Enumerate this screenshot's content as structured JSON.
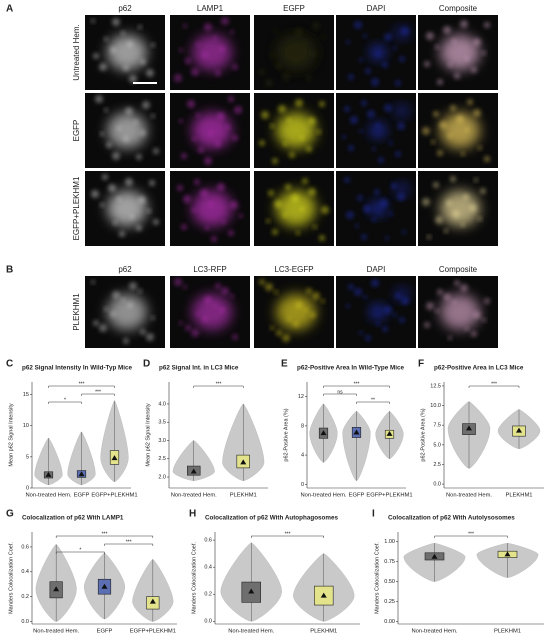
{
  "panel_a": {
    "label": "A",
    "columns": [
      "p62",
      "LAMP1",
      "EGFP",
      "DAPI",
      "Composite"
    ],
    "rows": [
      "Untreated Hem.",
      "EGFP",
      "EGFP+PLEKHM1"
    ]
  },
  "panel_b": {
    "label": "B",
    "columns": [
      "p62",
      "LC3-RFP",
      "LC3-EGFP",
      "DAPI",
      "Composite"
    ],
    "rows": [
      "PLEKHM1"
    ]
  },
  "chart_data": [
    {
      "type": "violin",
      "label": "C",
      "title": "p62 Signal Intensity In Wild-Typ Mice",
      "y_label": "Mean p62 Signal Intensity",
      "categories": [
        "Non-treated Hem.",
        "EGFP",
        "EGFP+PLEKHM1"
      ],
      "colors": [
        "#6e6e6e",
        "#5b6fb2",
        "#e3e38c"
      ],
      "values": [
        2.1,
        2.2,
        4.8
      ],
      "q1": [
        1.6,
        1.7,
        3.8
      ],
      "q3": [
        2.6,
        2.8,
        6
      ],
      "min": [
        0.5,
        0.5,
        1
      ],
      "max": [
        8,
        9,
        14
      ],
      "ylim": [
        0,
        17
      ],
      "yticks": [
        0,
        5,
        10,
        15
      ],
      "significance": [
        {
          "pair": [
            0,
            2
          ],
          "label": "***"
        },
        {
          "pair": [
            1,
            2
          ],
          "label": "***"
        },
        {
          "pair": [
            0,
            1
          ],
          "label": "*"
        }
      ]
    },
    {
      "type": "violin",
      "label": "D",
      "title": "p62 Signal Int. in LC3 Mice",
      "y_label": "Mean p62 Signal Intensity",
      "categories": [
        "Non-treated Hem.",
        "PLEKHM1"
      ],
      "colors": [
        "#6e6e6e",
        "#e3e38c"
      ],
      "values": [
        2.15,
        2.4
      ],
      "q1": [
        2.05,
        2.25
      ],
      "q3": [
        2.3,
        2.6
      ],
      "min": [
        1.9,
        1.9
      ],
      "max": [
        3.0,
        4.0
      ],
      "ylim": [
        1.7,
        4.6
      ],
      "yticks": [
        {
          "value": 2,
          "label": "2.0"
        },
        2.5,
        {
          "value": 3,
          "label": "3.0"
        },
        3.5,
        {
          "value": 4,
          "label": "4.0"
        }
      ],
      "significance": [
        {
          "pair": [
            0,
            1
          ],
          "label": "***"
        }
      ]
    },
    {
      "type": "violin",
      "label": "E",
      "title": "p62-Positive Area In Wild-Type Mice",
      "y_label": "p62-Positive Area (%)",
      "categories": [
        "Non-treated Hem.",
        "EGFP",
        "EGFP+PLEKHM1"
      ],
      "colors": [
        "#6e6e6e",
        "#5b6fb2",
        "#e3e38c"
      ],
      "values": [
        7,
        7.1,
        6.9
      ],
      "q1": [
        6.3,
        6.4,
        6.3
      ],
      "q3": [
        7.7,
        7.8,
        7.4
      ],
      "min": [
        3,
        0.5,
        3.5
      ],
      "max": [
        11,
        10,
        10
      ],
      "ylim": [
        -0.5,
        14
      ],
      "yticks": [
        0,
        4,
        8,
        12
      ],
      "significance": [
        {
          "pair": [
            0,
            2
          ],
          "label": "***"
        },
        {
          "pair": [
            0,
            1
          ],
          "label": "ns"
        },
        {
          "pair": [
            1,
            2
          ],
          "label": "**"
        }
      ]
    },
    {
      "type": "violin",
      "label": "F",
      "title": "p62-Positive Area in LC3 Mice",
      "y_label": "p62-Positive Area (%)",
      "categories": [
        "Non-treated Hem.",
        "PLEKHM1"
      ],
      "colors": [
        "#6e6e6e",
        "#e3e38c"
      ],
      "values": [
        7.1,
        6.8
      ],
      "q1": [
        6.3,
        6.1
      ],
      "q3": [
        7.7,
        7.4
      ],
      "min": [
        2,
        4.5
      ],
      "max": [
        10.5,
        9.5
      ],
      "ylim": [
        -0.5,
        13
      ],
      "yticks": [
        {
          "value": 0,
          "label": "0.0"
        },
        2.5,
        {
          "value": 5,
          "label": "5.0"
        },
        7.5,
        {
          "value": 10,
          "label": "10.0"
        },
        12.5
      ],
      "significance": [
        {
          "pair": [
            0,
            1
          ],
          "label": "***"
        }
      ]
    },
    {
      "type": "violin",
      "label": "G",
      "title": "Colocalization of p62 With LAMP1",
      "y_label": "Manders Colocalization Coef.",
      "categories": [
        "Non-treated Hem.",
        "EGFP",
        "EGFP+PLEKHM1"
      ],
      "colors": [
        "#6e6e6e",
        "#5b6fb2",
        "#e3e38c"
      ],
      "values": [
        0.26,
        0.28,
        0.16
      ],
      "q1": [
        0.19,
        0.22,
        0.1
      ],
      "q3": [
        0.32,
        0.34,
        0.2
      ],
      "min": [
        0,
        0.02,
        0
      ],
      "max": [
        0.62,
        0.55,
        0.5
      ],
      "ylim": [
        -0.02,
        0.72
      ],
      "yticks": [
        {
          "value": 0,
          "label": "0.0"
        },
        0.2,
        0.4,
        0.6
      ],
      "significance": [
        {
          "pair": [
            0,
            2
          ],
          "label": "***"
        },
        {
          "pair": [
            1,
            2
          ],
          "label": "***"
        },
        {
          "pair": [
            0,
            1
          ],
          "label": "*"
        }
      ]
    },
    {
      "type": "violin",
      "label": "H",
      "title": "Colocalization of p62 With Autophagosomes",
      "y_label": "Manders Colocalization Coef.",
      "categories": [
        "Non-treated Hem.",
        "PLEKHM1"
      ],
      "colors": [
        "#6e6e6e",
        "#e3e38c"
      ],
      "values": [
        0.22,
        0.19
      ],
      "q1": [
        0.14,
        0.12
      ],
      "q3": [
        0.29,
        0.26
      ],
      "min": [
        0,
        0
      ],
      "max": [
        0.58,
        0.5
      ],
      "ylim": [
        -0.02,
        0.66
      ],
      "yticks": [
        {
          "value": 0,
          "label": "0.0"
        },
        0.2,
        0.4,
        0.6
      ],
      "significance": [
        {
          "pair": [
            0,
            1
          ],
          "label": "***"
        }
      ]
    },
    {
      "type": "violin",
      "label": "I",
      "title": "Colocalization of p62 With Autolysosomes",
      "y_label": "Manders Colocalization Coef.",
      "categories": [
        "Non-treated Hem.",
        "PLEKHM1"
      ],
      "colors": [
        "#6e6e6e",
        "#e3e38c"
      ],
      "values": [
        0.81,
        0.84
      ],
      "q1": [
        0.77,
        0.8
      ],
      "q3": [
        0.86,
        0.88
      ],
      "min": [
        0.5,
        0.55
      ],
      "max": [
        0.98,
        0.98
      ],
      "ylim": [
        -0.03,
        1.12
      ],
      "yticks": [
        {
          "value": 0,
          "label": "0.00"
        },
        0.25,
        {
          "value": 0.5,
          "label": "0.50"
        },
        0.75,
        {
          "value": 1,
          "label": "1.00"
        }
      ],
      "significance": [
        {
          "pair": [
            0,
            1
          ],
          "label": "***"
        }
      ]
    }
  ]
}
